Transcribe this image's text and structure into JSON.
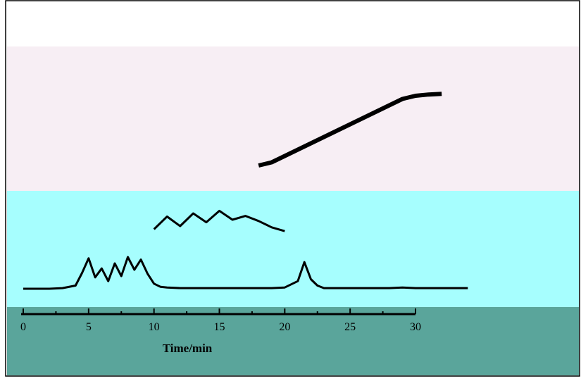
{
  "chart_data": {
    "type": "line",
    "title": "",
    "xlabel": "Time/min",
    "ylabel": "",
    "xlim": [
      0,
      36
    ],
    "x_ticks": [
      "0",
      "5",
      "10",
      "15",
      "20",
      "25",
      "30"
    ],
    "grid": false,
    "legend": "none",
    "series": [
      {
        "values_y_relative": "chromatogram traces (stacked), qualitative shape only",
        "x": [
          0,
          1,
          2,
          3,
          4,
          4.5,
          5,
          5.5,
          6,
          6.5,
          7,
          7.5,
          8,
          8.5,
          9,
          9.5,
          10,
          10.5,
          11,
          12,
          13,
          14,
          15,
          16,
          17,
          18,
          19,
          20,
          21,
          21.5,
          22,
          22.5,
          23,
          24,
          25,
          26,
          27,
          28,
          29,
          30,
          31,
          32,
          33,
          34
        ],
        "y": [
          0,
          0,
          0,
          0.1,
          0.5,
          2.5,
          4.8,
          1.8,
          3.2,
          1.2,
          4.0,
          2.0,
          5.0,
          3.0,
          4.6,
          2.4,
          0.8,
          0.3,
          0.2,
          0.1,
          0.1,
          0.1,
          0.1,
          0.1,
          0.1,
          0.1,
          0.1,
          0.2,
          1.2,
          4.2,
          1.5,
          0.5,
          0.1,
          0.1,
          0.1,
          0.1,
          0.1,
          0.1,
          0.2,
          0.1,
          0.1,
          0.1,
          0.1,
          0.1
        ]
      },
      {
        "x": [
          10,
          11,
          12,
          13,
          14,
          15,
          16,
          17,
          18,
          19,
          20
        ],
        "y": [
          0.5,
          2.5,
          1.0,
          3.0,
          1.6,
          3.4,
          2.0,
          2.6,
          1.8,
          0.8,
          0.2
        ]
      },
      {
        "x": [
          18,
          19,
          20,
          21,
          22,
          23,
          24,
          25,
          26,
          27,
          28,
          29,
          30,
          31,
          32
        ],
        "y": [
          0,
          0.5,
          1.5,
          2.5,
          3.5,
          4.5,
          5.5,
          6.5,
          7.5,
          8.5,
          9.5,
          10.5,
          11.0,
          11.2,
          11.3
        ]
      }
    ],
    "colors": {
      "ink": "#000000",
      "band_upper": "#f7eef4",
      "band_lower": "#a6fefe",
      "band_bottom": "#5aa59b",
      "frame": "#000000"
    }
  }
}
